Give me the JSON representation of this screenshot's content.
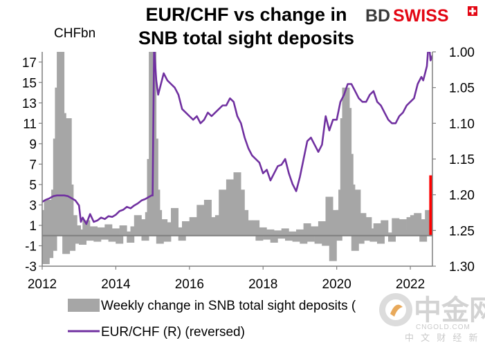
{
  "brand": {
    "name_bd": "BD",
    "name_swiss": "SWISS",
    "red": "#E30613",
    "dark": "#3a3a3a"
  },
  "watermark": {
    "main": "中金网",
    "sub": "CNGOLD.COM",
    "tagline": "中 文 财 经 新 媒 体",
    "color": "#cfcfcf",
    "icon_name": "cngold-logo-icon"
  },
  "chart_data": {
    "type": "bar+line",
    "title_line1": "EUR/CHF vs change in",
    "title_line2": "SNB total sight deposits",
    "left_axis_unit": "CHFbn",
    "left_axis": {
      "range": [
        -3,
        18
      ],
      "ticks": [
        "-3",
        "-1",
        "1",
        "3",
        "5",
        "7",
        "9",
        "11",
        "13",
        "15",
        "17"
      ]
    },
    "right_axis": {
      "range": [
        1.0,
        1.3
      ],
      "reversed": true,
      "ticks": [
        "1.00",
        "1.05",
        "1.10",
        "1.15",
        "1.20",
        "1.25",
        "1.30"
      ]
    },
    "x_axis": {
      "range": [
        2012.0,
        2022.6
      ],
      "ticks": [
        "2012",
        "2014",
        "2016",
        "2018",
        "2020",
        "2022"
      ]
    },
    "colors": {
      "bars": "#a6a6a6",
      "line": "#7030a0",
      "highlight": "#ff0000",
      "zero_line": "#7f7f7f"
    },
    "legend": [
      {
        "label": "Weekly change in SNB total sight deposits (",
        "swatch": "bar"
      },
      {
        "label": "EUR/CHF (R) (reversed)",
        "swatch": "line"
      }
    ],
    "series": [
      {
        "name": "Weekly change in SNB total sight deposits",
        "axis": "left",
        "kind": "bar",
        "points": [
          [
            2012.0,
            1.2
          ],
          [
            2012.05,
            2.5
          ],
          [
            2012.1,
            -2.8
          ],
          [
            2012.15,
            3.5
          ],
          [
            2012.2,
            -2.2
          ],
          [
            2012.25,
            1.8
          ],
          [
            2012.3,
            -1.5
          ],
          [
            2012.35,
            4.5
          ],
          [
            2012.4,
            9.5
          ],
          [
            2012.45,
            14.5
          ],
          [
            2012.5,
            18.0
          ],
          [
            2012.55,
            12.0
          ],
          [
            2012.6,
            6.5
          ],
          [
            2012.65,
            -1.8
          ],
          [
            2012.7,
            11.5
          ],
          [
            2012.75,
            5.0
          ],
          [
            2012.8,
            -1.5
          ],
          [
            2012.85,
            2.0
          ],
          [
            2012.9,
            -0.8
          ],
          [
            2012.95,
            1.0
          ],
          [
            2013.0,
            0.6
          ],
          [
            2013.1,
            -0.9
          ],
          [
            2013.2,
            1.5
          ],
          [
            2013.3,
            -0.5
          ],
          [
            2013.4,
            0.9
          ],
          [
            2013.5,
            -0.6
          ],
          [
            2013.6,
            0.8
          ],
          [
            2013.7,
            -0.4
          ],
          [
            2013.8,
            1.1
          ],
          [
            2013.9,
            -0.6
          ],
          [
            2014.0,
            0.7
          ],
          [
            2014.1,
            -0.8
          ],
          [
            2014.2,
            1.0
          ],
          [
            2014.3,
            0.4
          ],
          [
            2014.4,
            -0.7
          ],
          [
            2014.5,
            0.9
          ],
          [
            2014.6,
            2.0
          ],
          [
            2014.7,
            1.6
          ],
          [
            2014.8,
            -0.5
          ],
          [
            2014.9,
            2.3
          ],
          [
            2014.95,
            7.5
          ],
          [
            2015.0,
            18.0
          ],
          [
            2015.05,
            9.5
          ],
          [
            2015.1,
            4.5
          ],
          [
            2015.15,
            2.5
          ],
          [
            2015.2,
            -0.8
          ],
          [
            2015.3,
            1.6
          ],
          [
            2015.4,
            -0.6
          ],
          [
            2015.5,
            1.3
          ],
          [
            2015.6,
            2.7
          ],
          [
            2015.7,
            0.8
          ],
          [
            2015.8,
            -0.5
          ],
          [
            2015.9,
            1.4
          ],
          [
            2016.0,
            0.5
          ],
          [
            2016.1,
            1.8
          ],
          [
            2016.2,
            0.5
          ],
          [
            2016.3,
            3.0
          ],
          [
            2016.4,
            1.2
          ],
          [
            2016.5,
            3.5
          ],
          [
            2016.6,
            1.8
          ],
          [
            2016.7,
            0.4
          ],
          [
            2016.8,
            2.0
          ],
          [
            2016.9,
            4.5
          ],
          [
            2017.0,
            2.8
          ],
          [
            2017.1,
            5.5
          ],
          [
            2017.2,
            3.2
          ],
          [
            2017.3,
            6.2
          ],
          [
            2017.4,
            4.5
          ],
          [
            2017.5,
            2.5
          ],
          [
            2017.6,
            1.5
          ],
          [
            2017.7,
            0.8
          ],
          [
            2017.8,
            1.5
          ],
          [
            2017.9,
            -0.5
          ],
          [
            2018.0,
            0.8
          ],
          [
            2018.1,
            -0.4
          ],
          [
            2018.2,
            0.6
          ],
          [
            2018.3,
            -0.7
          ],
          [
            2018.4,
            0.5
          ],
          [
            2018.5,
            -0.3
          ],
          [
            2018.6,
            0.7
          ],
          [
            2018.7,
            -0.5
          ],
          [
            2018.8,
            0.4
          ],
          [
            2018.9,
            -0.6
          ],
          [
            2019.0,
            0.6
          ],
          [
            2019.1,
            -0.8
          ],
          [
            2019.2,
            1.2
          ],
          [
            2019.3,
            -0.6
          ],
          [
            2019.4,
            0.9
          ],
          [
            2019.5,
            -0.8
          ],
          [
            2019.6,
            1.4
          ],
          [
            2019.7,
            -1.0
          ],
          [
            2019.8,
            3.8
          ],
          [
            2019.9,
            -2.5
          ],
          [
            2019.95,
            2.5
          ],
          [
            2020.0,
            1.5
          ],
          [
            2020.05,
            -0.5
          ],
          [
            2020.1,
            2.5
          ],
          [
            2020.15,
            4.5
          ],
          [
            2020.2,
            11.5
          ],
          [
            2020.25,
            14.5
          ],
          [
            2020.3,
            12.5
          ],
          [
            2020.35,
            8.0
          ],
          [
            2020.4,
            5.0
          ],
          [
            2020.45,
            3.5
          ],
          [
            2020.5,
            -1.5
          ],
          [
            2020.55,
            4.5
          ],
          [
            2020.6,
            1.5
          ],
          [
            2020.65,
            -0.8
          ],
          [
            2020.7,
            2.2
          ],
          [
            2020.75,
            0.9
          ],
          [
            2020.8,
            -0.5
          ],
          [
            2020.85,
            1.8
          ],
          [
            2020.9,
            0.7
          ],
          [
            2021.0,
            -0.6
          ],
          [
            2021.1,
            1.2
          ],
          [
            2021.2,
            -0.8
          ],
          [
            2021.3,
            1.5
          ],
          [
            2021.4,
            0.3
          ],
          [
            2021.5,
            -0.6
          ],
          [
            2021.6,
            1.7
          ],
          [
            2021.7,
            0.5
          ],
          [
            2021.8,
            1.6
          ],
          [
            2021.9,
            0.6
          ],
          [
            2022.0,
            1.8
          ],
          [
            2022.05,
            0.4
          ],
          [
            2022.1,
            2.0
          ],
          [
            2022.15,
            1.0
          ],
          [
            2022.2,
            2.2
          ],
          [
            2022.25,
            0.5
          ],
          [
            2022.3,
            1.3
          ],
          [
            2022.35,
            -0.6
          ],
          [
            2022.4,
            1.6
          ],
          [
            2022.45,
            0.8
          ],
          [
            2022.5,
            2.5
          ]
        ]
      },
      {
        "name": "Weekly change in SNB total sight deposits (latest)",
        "axis": "left",
        "kind": "bar-highlight",
        "points": [
          [
            2022.56,
            5.9
          ]
        ]
      },
      {
        "name": "EUR/CHF (R) (reversed)",
        "axis": "right",
        "kind": "line",
        "points": [
          [
            2012.0,
            1.21
          ],
          [
            2012.1,
            1.207
          ],
          [
            2012.2,
            1.205
          ],
          [
            2012.3,
            1.202
          ],
          [
            2012.4,
            1.201
          ],
          [
            2012.5,
            1.201
          ],
          [
            2012.6,
            1.201
          ],
          [
            2012.7,
            1.202
          ],
          [
            2012.8,
            1.205
          ],
          [
            2012.9,
            1.208
          ],
          [
            2013.0,
            1.215
          ],
          [
            2013.05,
            1.238
          ],
          [
            2013.1,
            1.232
          ],
          [
            2013.2,
            1.241
          ],
          [
            2013.3,
            1.227
          ],
          [
            2013.4,
            1.238
          ],
          [
            2013.5,
            1.236
          ],
          [
            2013.6,
            1.232
          ],
          [
            2013.7,
            1.234
          ],
          [
            2013.8,
            1.23
          ],
          [
            2013.9,
            1.231
          ],
          [
            2014.0,
            1.228
          ],
          [
            2014.1,
            1.223
          ],
          [
            2014.2,
            1.221
          ],
          [
            2014.3,
            1.217
          ],
          [
            2014.4,
            1.219
          ],
          [
            2014.5,
            1.215
          ],
          [
            2014.6,
            1.212
          ],
          [
            2014.7,
            1.208
          ],
          [
            2014.8,
            1.206
          ],
          [
            2014.9,
            1.203
          ],
          [
            2014.97,
            1.201
          ],
          [
            2015.0,
            1.201
          ],
          [
            2015.04,
            0.985
          ],
          [
            2015.06,
            1.01
          ],
          [
            2015.1,
            1.04
          ],
          [
            2015.15,
            1.06
          ],
          [
            2015.2,
            1.05
          ],
          [
            2015.3,
            1.03
          ],
          [
            2015.4,
            1.04
          ],
          [
            2015.5,
            1.045
          ],
          [
            2015.6,
            1.05
          ],
          [
            2015.7,
            1.06
          ],
          [
            2015.8,
            1.08
          ],
          [
            2015.9,
            1.085
          ],
          [
            2016.0,
            1.09
          ],
          [
            2016.1,
            1.095
          ],
          [
            2016.2,
            1.09
          ],
          [
            2016.3,
            1.1
          ],
          [
            2016.4,
            1.095
          ],
          [
            2016.5,
            1.085
          ],
          [
            2016.6,
            1.09
          ],
          [
            2016.7,
            1.085
          ],
          [
            2016.8,
            1.08
          ],
          [
            2016.9,
            1.075
          ],
          [
            2017.0,
            1.075
          ],
          [
            2017.1,
            1.065
          ],
          [
            2017.2,
            1.07
          ],
          [
            2017.3,
            1.09
          ],
          [
            2017.4,
            1.1
          ],
          [
            2017.5,
            1.12
          ],
          [
            2017.6,
            1.135
          ],
          [
            2017.7,
            1.145
          ],
          [
            2017.8,
            1.15
          ],
          [
            2017.9,
            1.155
          ],
          [
            2018.0,
            1.17
          ],
          [
            2018.1,
            1.165
          ],
          [
            2018.2,
            1.18
          ],
          [
            2018.3,
            1.17
          ],
          [
            2018.4,
            1.16
          ],
          [
            2018.5,
            1.158
          ],
          [
            2018.6,
            1.15
          ],
          [
            2018.7,
            1.17
          ],
          [
            2018.8,
            1.185
          ],
          [
            2018.9,
            1.195
          ],
          [
            2019.0,
            1.175
          ],
          [
            2019.1,
            1.15
          ],
          [
            2019.2,
            1.125
          ],
          [
            2019.3,
            1.12
          ],
          [
            2019.4,
            1.13
          ],
          [
            2019.5,
            1.14
          ],
          [
            2019.6,
            1.13
          ],
          [
            2019.7,
            1.09
          ],
          [
            2019.8,
            1.11
          ],
          [
            2019.9,
            1.095
          ],
          [
            2020.0,
            1.095
          ],
          [
            2020.1,
            1.07
          ],
          [
            2020.2,
            1.06
          ],
          [
            2020.3,
            1.045
          ],
          [
            2020.4,
            1.045
          ],
          [
            2020.5,
            1.055
          ],
          [
            2020.6,
            1.065
          ],
          [
            2020.7,
            1.07
          ],
          [
            2020.8,
            1.07
          ],
          [
            2020.9,
            1.06
          ],
          [
            2021.0,
            1.055
          ],
          [
            2021.1,
            1.07
          ],
          [
            2021.2,
            1.075
          ],
          [
            2021.3,
            1.085
          ],
          [
            2021.4,
            1.095
          ],
          [
            2021.5,
            1.1
          ],
          [
            2021.6,
            1.1
          ],
          [
            2021.7,
            1.09
          ],
          [
            2021.8,
            1.085
          ],
          [
            2021.9,
            1.075
          ],
          [
            2022.0,
            1.07
          ],
          [
            2022.1,
            1.065
          ],
          [
            2022.2,
            1.045
          ],
          [
            2022.3,
            1.035
          ],
          [
            2022.35,
            1.04
          ],
          [
            2022.4,
            1.03
          ],
          [
            2022.45,
            1.02
          ],
          [
            2022.5,
            0.985
          ],
          [
            2022.55,
            1.012
          ],
          [
            2022.6,
            1.005
          ]
        ]
      }
    ]
  }
}
